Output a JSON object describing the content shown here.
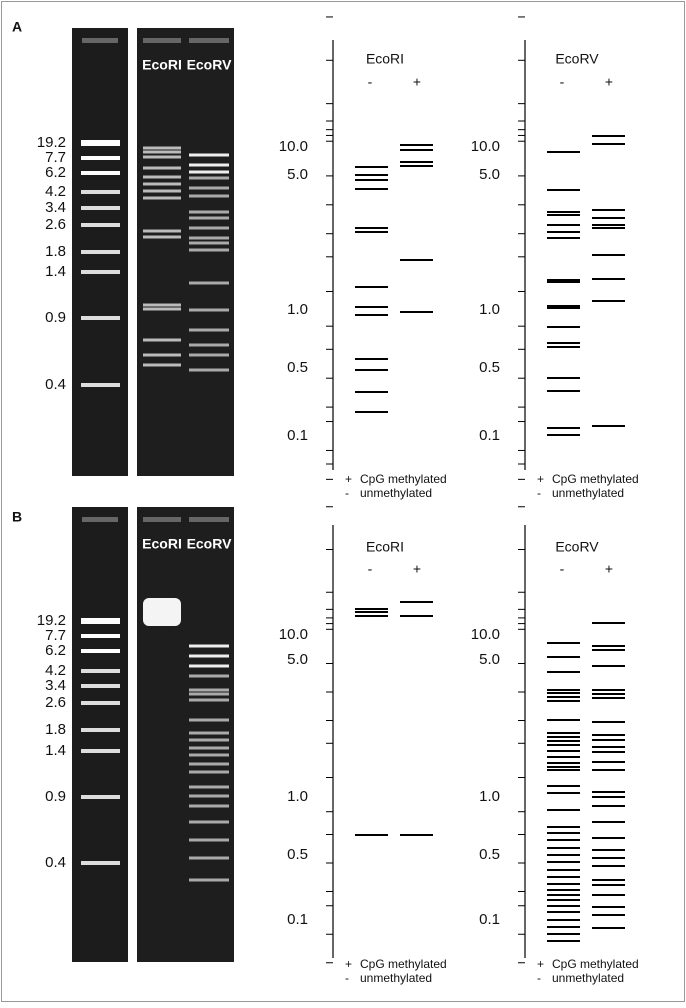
{
  "panels": [
    {
      "label": "A",
      "ladder_labels": [
        "19.2",
        "7.7",
        "6.2",
        "4.2",
        "3.4",
        "2.6",
        "1.8",
        "1.4",
        "0.9",
        "0.4"
      ],
      "lanes": [
        "EcoRI",
        "EcoRV"
      ],
      "schematics": [
        {
          "title": "EcoRI",
          "minus": "-",
          "plus": "+",
          "axis_labels": [
            "10.0",
            "5.0",
            "1.0",
            "0.5",
            "0.1"
          ],
          "legend": [
            {
              "sign": "+",
              "text": "CpG methylated"
            },
            {
              "sign": "-",
              "text": "unmethylated"
            }
          ]
        },
        {
          "title": "EcoRV",
          "minus": "-",
          "plus": "+",
          "axis_labels": [
            "10.0",
            "5.0",
            "1.0",
            "0.5",
            "0.1"
          ],
          "legend": [
            {
              "sign": "+",
              "text": "CpG methylated"
            },
            {
              "sign": "-",
              "text": "unmethylated"
            }
          ]
        }
      ]
    },
    {
      "label": "B",
      "ladder_labels": [
        "19.2",
        "7.7",
        "6.2",
        "4.2",
        "3.4",
        "2.6",
        "1.8",
        "1.4",
        "0.9",
        "0.4"
      ],
      "lanes": [
        "EcoRI",
        "EcoRV"
      ],
      "schematics": [
        {
          "title": "EcoRI",
          "minus": "-",
          "plus": "+",
          "axis_labels": [
            "10.0",
            "5.0",
            "1.0",
            "0.5",
            "0.1"
          ],
          "legend": [
            {
              "sign": "+",
              "text": "CpG methylated"
            },
            {
              "sign": "-",
              "text": "unmethylated"
            }
          ]
        },
        {
          "title": "EcoRV",
          "minus": "-",
          "plus": "+",
          "axis_labels": [
            "10.0",
            "5.0",
            "1.0",
            "0.5",
            "0.1"
          ],
          "legend": [
            {
              "sign": "+",
              "text": "CpG methylated"
            },
            {
              "sign": "-",
              "text": "unmethylated"
            }
          ]
        }
      ]
    }
  ]
}
